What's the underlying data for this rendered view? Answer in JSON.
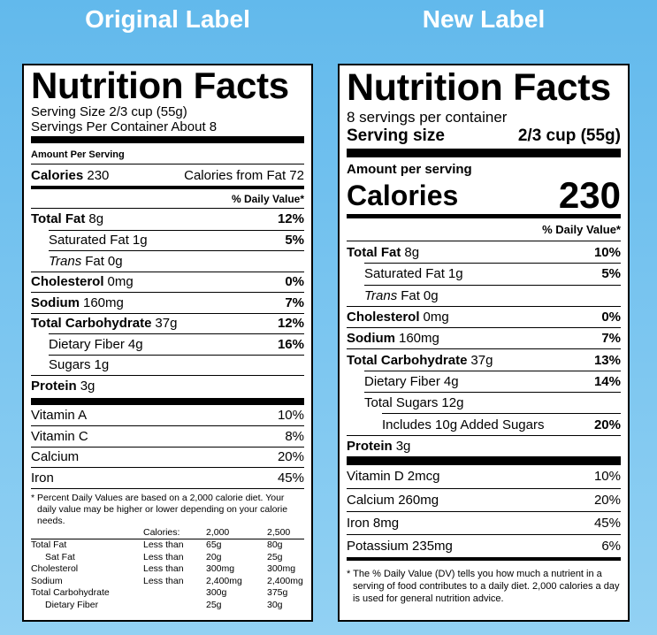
{
  "headings": [
    "Original Label",
    "New Label"
  ],
  "original": {
    "title": "Nutrition Facts",
    "serving_size": "Serving Size 2/3 cup (55g)",
    "servings_per_container": "Servings Per Container About 8",
    "amount_per_serving": "Amount Per Serving",
    "calories": {
      "label": "Calories",
      "value": "230",
      "from_fat": "Calories from Fat 72"
    },
    "daily_value_header": "% Daily Value*",
    "nutrients": [
      {
        "label": "Total Fat",
        "amount": "8g",
        "dv": "12%",
        "sub": [
          {
            "label": "Saturated Fat",
            "amount": "1g",
            "dv": "5%"
          },
          {
            "label_italic": "Trans",
            "label": "Fat",
            "amount": "0g"
          }
        ]
      },
      {
        "label": "Cholesterol",
        "amount": "0mg",
        "dv": "0%"
      },
      {
        "label": "Sodium",
        "amount": "160mg",
        "dv": "7%"
      },
      {
        "label": "Total Carbohydrate",
        "amount": "37g",
        "dv": "12%",
        "sub": [
          {
            "label": "Dietary Fiber",
            "amount": "4g",
            "dv": "16%"
          },
          {
            "label": "Sugars",
            "amount": "1g"
          }
        ]
      },
      {
        "label": "Protein",
        "amount": "3g"
      }
    ],
    "vitamins": [
      {
        "label": "Vitamin A",
        "dv": "10%"
      },
      {
        "label": "Vitamin C",
        "dv": "8%"
      },
      {
        "label": "Calcium",
        "dv": "20%"
      },
      {
        "label": "Iron",
        "dv": "45%"
      }
    ],
    "footnote": "* Percent Daily Values are based on a 2,000 calorie diet. Your daily value may be higher or lower depending on your calorie needs.",
    "reference_table": {
      "header": {
        "label": "Calories:",
        "columns": [
          "2,000",
          "2,500"
        ]
      },
      "rows": [
        {
          "nutrient": "Total Fat",
          "limit": "Less than",
          "values": [
            "65g",
            "80g"
          ],
          "sub": [
            {
              "nutrient": "Sat Fat",
              "limit": "Less than",
              "values": [
                "20g",
                "25g"
              ]
            }
          ]
        },
        {
          "nutrient": "Cholesterol",
          "limit": "Less than",
          "values": [
            "300mg",
            "300mg"
          ]
        },
        {
          "nutrient": "Sodium",
          "limit": "Less than",
          "values": [
            "2,400mg",
            "2,400mg"
          ]
        },
        {
          "nutrient": "Total Carbohydrate",
          "values": [
            "300g",
            "375g"
          ],
          "sub": [
            {
              "nutrient": "Dietary Fiber",
              "values": [
                "25g",
                "30g"
              ]
            }
          ]
        }
      ]
    }
  },
  "new": {
    "title": "Nutrition Facts",
    "servings_per_container": "8 servings per container",
    "serving_size": {
      "label": "Serving size",
      "value": "2/3 cup (55g)"
    },
    "amount_per_serving": "Amount per serving",
    "calories": {
      "label": "Calories",
      "value": "230"
    },
    "daily_value_header": "% Daily Value*",
    "nutrients": [
      {
        "label": "Total Fat",
        "amount": "8g",
        "dv": "10%",
        "sub": [
          {
            "label": "Saturated Fat",
            "amount": "1g",
            "dv": "5%"
          },
          {
            "label_italic": "Trans",
            "label": "Fat",
            "amount": "0g"
          }
        ]
      },
      {
        "label": "Cholesterol",
        "amount": "0mg",
        "dv": "0%"
      },
      {
        "label": "Sodium",
        "amount": "160mg",
        "dv": "7%"
      },
      {
        "label": "Total Carbohydrate",
        "amount": "37g",
        "dv": "13%",
        "sub": [
          {
            "label": "Dietary Fiber",
            "amount": "4g",
            "dv": "14%"
          },
          {
            "label": "Total Sugars",
            "amount": "12g",
            "sub": [
              {
                "label": "Includes 10g Added Sugars",
                "dv": "20%"
              }
            ]
          }
        ]
      },
      {
        "label": "Protein",
        "amount": "3g"
      }
    ],
    "vitamins": [
      {
        "label": "Vitamin D",
        "amount": "2mcg",
        "dv": "10%"
      },
      {
        "label": "Calcium",
        "amount": "260mg",
        "dv": "20%"
      },
      {
        "label": "Iron",
        "amount": "8mg",
        "dv": "45%"
      },
      {
        "label": "Potassium",
        "amount": "235mg",
        "dv": "6%"
      }
    ],
    "footnote": "* The % Daily Value (DV) tells you how much a nutrient in a serving of food contributes to a daily diet. 2,000 calories a day is used for general nutrition advice."
  }
}
